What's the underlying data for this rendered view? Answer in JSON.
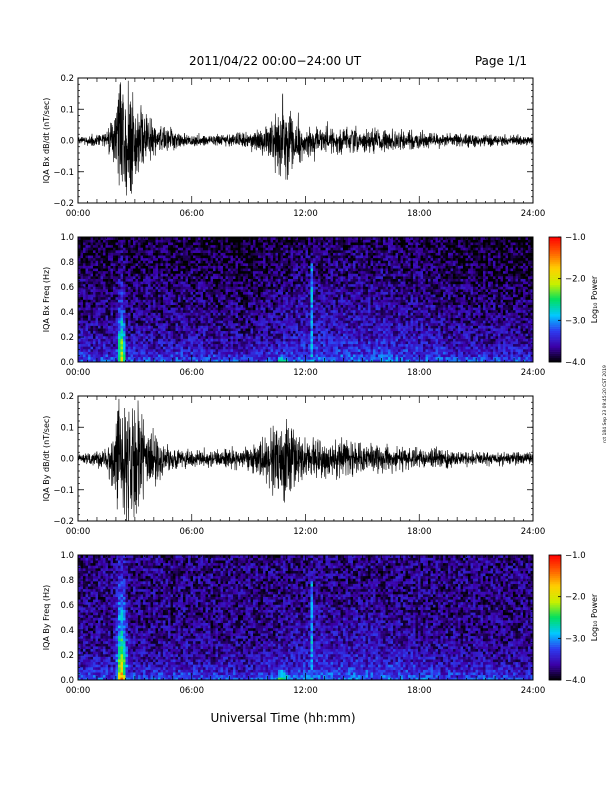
{
  "header": {
    "title": "2011/04/22  00:00−24:00 UT",
    "page": "Page 1/1"
  },
  "footer": {
    "xlabel": "Universal Time (hh:mm)",
    "side_note": "rct 184 Sep 23 09:45:20 CST 2019"
  },
  "colorbar": {
    "label": "Log₁₀ Power",
    "ticks": [
      {
        "value": -1.0,
        "label": "−1.0"
      },
      {
        "value": -2.0,
        "label": "−2.0"
      },
      {
        "value": -3.0,
        "label": "−3.0"
      },
      {
        "value": -4.0,
        "label": "−4.0"
      }
    ],
    "range": [
      -4.0,
      -1.0
    ],
    "colors": [
      "#000000",
      "#3b00a8",
      "#2d3cf0",
      "#00c8ff",
      "#00e060",
      "#c8f000",
      "#ffd000",
      "#ff6000",
      "#ff0000"
    ]
  },
  "chart_data": [
    {
      "type": "line",
      "ylabel": "IQA Bx dB/dt (nT/sec)",
      "xlim": [
        0,
        24
      ],
      "ylim": [
        -0.2,
        0.2
      ],
      "xticks": [
        {
          "value": 0,
          "label": "00:00"
        },
        {
          "value": 6,
          "label": "06:00"
        },
        {
          "value": 12,
          "label": "12:00"
        },
        {
          "value": 18,
          "label": "18:00"
        },
        {
          "value": 24,
          "label": "24:00"
        }
      ],
      "yticks": [
        {
          "value": 0.2,
          "label": "0.2"
        },
        {
          "value": 0.1,
          "label": "0.1"
        },
        {
          "value": 0.0,
          "label": "0.0"
        },
        {
          "value": -0.1,
          "label": "−0.1"
        },
        {
          "value": -0.2,
          "label": "−0.2"
        }
      ],
      "envelope": {
        "x": [
          0,
          1.5,
          2.0,
          2.2,
          2.5,
          2.8,
          3.2,
          3.6,
          4.0,
          4.5,
          5.0,
          6.0,
          7.0,
          8.0,
          9.0,
          10.0,
          10.5,
          10.8,
          11.2,
          12.0,
          13.0,
          14.0,
          15.0,
          16.0,
          18.0,
          20.0,
          22.0,
          24.0
        ],
        "amplitude": [
          0.015,
          0.03,
          0.12,
          0.25,
          0.25,
          0.22,
          0.16,
          0.1,
          0.07,
          0.05,
          0.04,
          0.025,
          0.02,
          0.025,
          0.03,
          0.06,
          0.1,
          0.18,
          0.12,
          0.06,
          0.06,
          0.05,
          0.045,
          0.04,
          0.03,
          0.025,
          0.025,
          0.02
        ]
      }
    },
    {
      "type": "heatmap",
      "ylabel": "IQA Bx Freq (Hz)",
      "xlim": [
        0,
        24
      ],
      "ylim": [
        0.0,
        1.0
      ],
      "xticks": [
        {
          "value": 0,
          "label": "00:00"
        },
        {
          "value": 6,
          "label": "06:00"
        },
        {
          "value": 12,
          "label": "12:00"
        },
        {
          "value": 18,
          "label": "18:00"
        },
        {
          "value": 24,
          "label": "24:00"
        }
      ],
      "yticks": [
        {
          "value": 1.0,
          "label": "1.0"
        },
        {
          "value": 0.8,
          "label": "0.8"
        },
        {
          "value": 0.6,
          "label": "0.6"
        },
        {
          "value": 0.4,
          "label": "0.4"
        },
        {
          "value": 0.2,
          "label": "0.2"
        },
        {
          "value": 0.0,
          "label": "0.0"
        }
      ],
      "zlim": [
        -4.0,
        -1.0
      ],
      "features": [
        {
          "kind": "burst",
          "t": 2.3,
          "width": 0.25,
          "fmax": 1.0,
          "level": -1.8
        },
        {
          "kind": "burst",
          "t": 10.8,
          "width": 0.5,
          "fmax": 0.25,
          "level": -2.3
        },
        {
          "kind": "line",
          "t": 12.3,
          "fmax": 0.8,
          "level": -3.0
        }
      ]
    },
    {
      "type": "line",
      "ylabel": "IQA By dB/dt (nT/sec)",
      "xlim": [
        0,
        24
      ],
      "ylim": [
        -0.2,
        0.2
      ],
      "xticks": [
        {
          "value": 0,
          "label": "00:00"
        },
        {
          "value": 6,
          "label": "06:00"
        },
        {
          "value": 12,
          "label": "12:00"
        },
        {
          "value": 18,
          "label": "18:00"
        },
        {
          "value": 24,
          "label": "24:00"
        }
      ],
      "yticks": [
        {
          "value": 0.2,
          "label": "0.2"
        },
        {
          "value": 0.1,
          "label": "0.1"
        },
        {
          "value": 0.0,
          "label": "0.0"
        },
        {
          "value": -0.1,
          "label": "−0.1"
        },
        {
          "value": -0.2,
          "label": "−0.2"
        }
      ],
      "envelope": {
        "x": [
          0,
          1.5,
          2.0,
          2.2,
          2.5,
          2.8,
          3.2,
          3.6,
          4.0,
          4.5,
          5.0,
          6.0,
          7.0,
          8.0,
          9.0,
          10.0,
          10.5,
          10.8,
          11.2,
          12.0,
          13.0,
          14.0,
          15.0,
          16.0,
          18.0,
          20.0,
          22.0,
          24.0
        ],
        "amplitude": [
          0.015,
          0.04,
          0.15,
          0.25,
          0.25,
          0.25,
          0.2,
          0.14,
          0.1,
          0.07,
          0.05,
          0.03,
          0.03,
          0.04,
          0.05,
          0.08,
          0.15,
          0.22,
          0.13,
          0.08,
          0.09,
          0.07,
          0.06,
          0.05,
          0.04,
          0.03,
          0.025,
          0.02
        ]
      }
    },
    {
      "type": "heatmap",
      "ylabel": "IQA By Freq (Hz)",
      "xlim": [
        0,
        24
      ],
      "ylim": [
        0.0,
        1.0
      ],
      "xticks": [
        {
          "value": 0,
          "label": "00:00"
        },
        {
          "value": 6,
          "label": "06:00"
        },
        {
          "value": 12,
          "label": "12:00"
        },
        {
          "value": 18,
          "label": "18:00"
        },
        {
          "value": 24,
          "label": "24:00"
        }
      ],
      "yticks": [
        {
          "value": 1.0,
          "label": "1.0"
        },
        {
          "value": 0.8,
          "label": "0.8"
        },
        {
          "value": 0.6,
          "label": "0.6"
        },
        {
          "value": 0.4,
          "label": "0.4"
        },
        {
          "value": 0.2,
          "label": "0.2"
        },
        {
          "value": 0.0,
          "label": "0.0"
        }
      ],
      "zlim": [
        -4.0,
        -1.0
      ],
      "features": [
        {
          "kind": "burst",
          "t": 2.3,
          "width": 0.25,
          "fmax": 1.0,
          "level": -1.5
        },
        {
          "kind": "burst",
          "t": 10.8,
          "width": 0.5,
          "fmax": 0.3,
          "level": -2.2
        },
        {
          "kind": "line",
          "t": 12.3,
          "fmax": 0.8,
          "level": -3.0
        }
      ]
    }
  ]
}
